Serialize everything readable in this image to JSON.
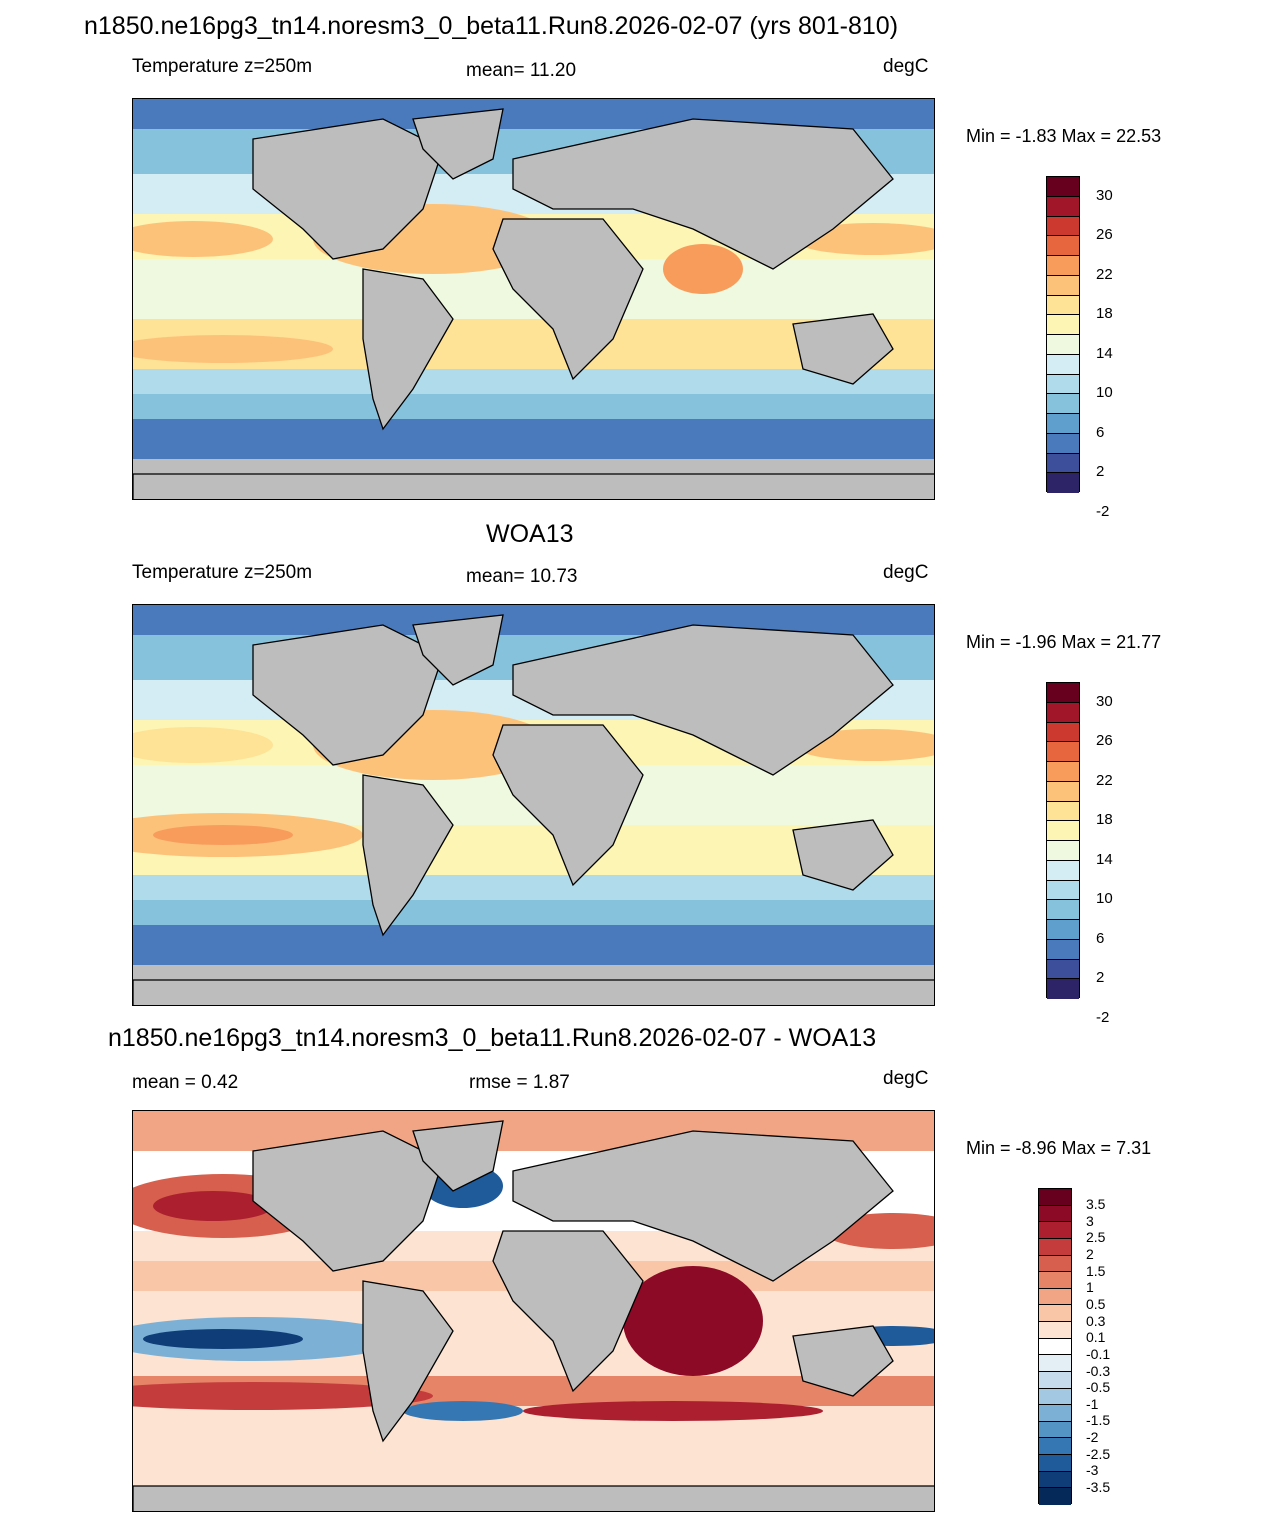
{
  "panels": [
    {
      "title": "n1850.ne16pg3_tn14.noresm3_0_beta11.Run8.2026-02-07 (yrs 801-810)",
      "left_label": "Temperature z=250m",
      "center_label": "mean=  11.20",
      "right_label": "degC",
      "minmax": "Min =  -1.83 Max =  22.53",
      "colorbar": {
        "labels": [
          "30",
          "26",
          "22",
          "18",
          "14",
          "10",
          "6",
          "2",
          "-2"
        ],
        "colors": [
          "#67001f",
          "#a11628",
          "#cc3a2f",
          "#e7663e",
          "#f89c5c",
          "#fdc27a",
          "#fee295",
          "#fdf5b4",
          "#eef9e0",
          "#d4ecf4",
          "#b0dbea",
          "#87c2dd",
          "#5e9fcd",
          "#4a7abc",
          "#3d4f9a",
          "#2c2466"
        ]
      }
    },
    {
      "title": "WOA13",
      "left_label": "Temperature z=250m",
      "center_label": "mean=  10.73",
      "right_label": "degC",
      "minmax": "Min =  -1.96 Max =  21.77",
      "colorbar": {
        "labels": [
          "30",
          "26",
          "22",
          "18",
          "14",
          "10",
          "6",
          "2",
          "-2"
        ],
        "colors": [
          "#67001f",
          "#a11628",
          "#cc3a2f",
          "#e7663e",
          "#f89c5c",
          "#fdc27a",
          "#fee295",
          "#fdf5b4",
          "#eef9e0",
          "#d4ecf4",
          "#b0dbea",
          "#87c2dd",
          "#5e9fcd",
          "#4a7abc",
          "#3d4f9a",
          "#2c2466"
        ]
      }
    },
    {
      "title": "n1850.ne16pg3_tn14.noresm3_0_beta11.Run8.2026-02-07 - WOA13",
      "left_label": "mean =   0.42",
      "center_label": "rmse =   1.87",
      "right_label": "degC",
      "minmax": "Min =  -8.96 Max =   7.31",
      "colorbar": {
        "labels": [
          "3.5",
          "3",
          "2.5",
          "2",
          "1.5",
          "1",
          "0.5",
          "0.3",
          "0.1",
          "-0.1",
          "-0.3",
          "-0.5",
          "-1",
          "-1.5",
          "-2",
          "-2.5",
          "-3",
          "-3.5"
        ],
        "colors": [
          "#67001f",
          "#8c0a26",
          "#ac1f2f",
          "#c43c3c",
          "#d6604d",
          "#e58467",
          "#f2a584",
          "#f9c6a8",
          "#fde3d2",
          "#ffffff",
          "#e4eef5",
          "#c6dcec",
          "#a3c8e1",
          "#7cb0d5",
          "#5494c5",
          "#3577b3",
          "#1f5a9a",
          "#0e3d78",
          "#052a5a"
        ]
      }
    }
  ]
}
